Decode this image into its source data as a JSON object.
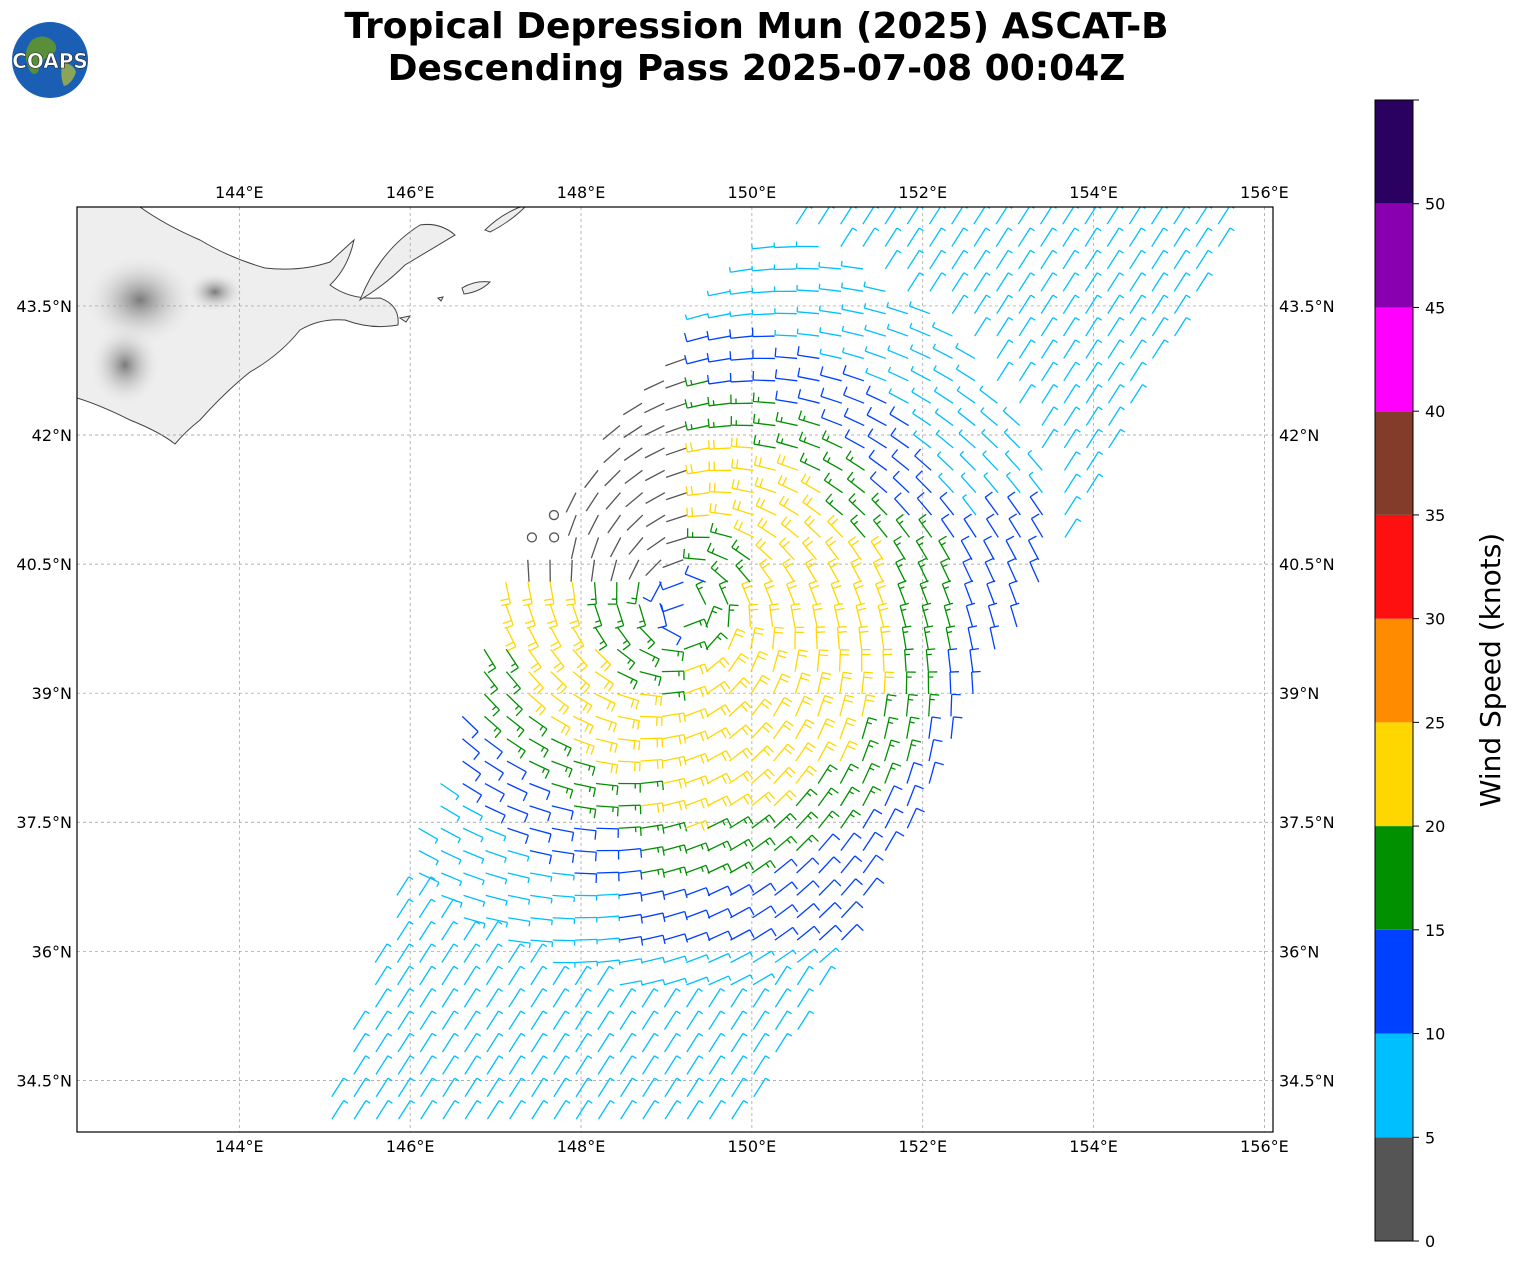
{
  "title": {
    "line1": "Tropical Depression Mun (2025) ASCAT-B",
    "line2": "Descending Pass 2025-07-08 00:04Z"
  },
  "logo": {
    "text": "COAPS",
    "icon": "globe-logo-icon"
  },
  "map": {
    "projection": "lat-lon",
    "lon_range": [
      142.1,
      156.1
    ],
    "lat_range": [
      33.9,
      44.65
    ],
    "lon_ticks": [
      "144°E",
      "146°E",
      "148°E",
      "150°E",
      "152°E",
      "154°E",
      "156°E"
    ],
    "lon_tick_values": [
      144,
      146,
      148,
      150,
      152,
      154,
      156
    ],
    "lat_ticks": [
      "43.5°N",
      "42°N",
      "40.5°N",
      "39°N",
      "37.5°N",
      "36°N",
      "34.5°N"
    ],
    "lat_tick_values": [
      43.5,
      42,
      40.5,
      39,
      37.5,
      36,
      34.5
    ],
    "grid": true,
    "gridline_style": "dashed",
    "land": "Hokkaido (grayscale topography), upper-left",
    "wind_vector_style": "barbs"
  },
  "colorbar": {
    "label": "Wind Speed (knots)",
    "ticks": [
      "0",
      "5",
      "10",
      "15",
      "20",
      "25",
      "30",
      "35",
      "40",
      "45",
      "50"
    ],
    "bins": [
      {
        "min": 0,
        "max": 5,
        "color": "#555555"
      },
      {
        "min": 5,
        "max": 10,
        "color": "#00bfff"
      },
      {
        "min": 10,
        "max": 15,
        "color": "#0040ff"
      },
      {
        "min": 15,
        "max": 20,
        "color": "#009000"
      },
      {
        "min": 20,
        "max": 25,
        "color": "#ffd700"
      },
      {
        "min": 25,
        "max": 30,
        "color": "#ff8c00"
      },
      {
        "min": 30,
        "max": 35,
        "color": "#ff1010"
      },
      {
        "min": 35,
        "max": 40,
        "color": "#843c2a"
      },
      {
        "min": 40,
        "max": 45,
        "color": "#ff00ff"
      },
      {
        "min": 45,
        "max": 50,
        "color": "#8800b0"
      },
      {
        "min": 50,
        "max": 55,
        "color": "#2a0060"
      }
    ]
  },
  "chart_data": {
    "type": "wind-barbs",
    "units": "knots",
    "circulation_center_approx": {
      "lon": 149.2,
      "lat": 40.0
    },
    "swath_speed_regions": [
      {
        "description": "calm (circles) and light winds, 0-5 kt",
        "lon_range": [
          147.0,
          149.2
        ],
        "lat_range": [
          40.5,
          43.5
        ]
      },
      {
        "description": "5-10 kt, western and southern swath",
        "lon_range": [
          145.0,
          148.5
        ],
        "lat_range": [
          34.0,
          40.5
        ]
      },
      {
        "description": "15-20 kt band wrapping around center",
        "lon_range": [
          147.5,
          154.0
        ],
        "lat_range": [
          36.5,
          41.0
        ]
      },
      {
        "description": "20-25 kt core, southeast of center",
        "lon_range": [
          149.0,
          152.0
        ],
        "lat_range": [
          37.0,
          40.5
        ]
      }
    ]
  }
}
